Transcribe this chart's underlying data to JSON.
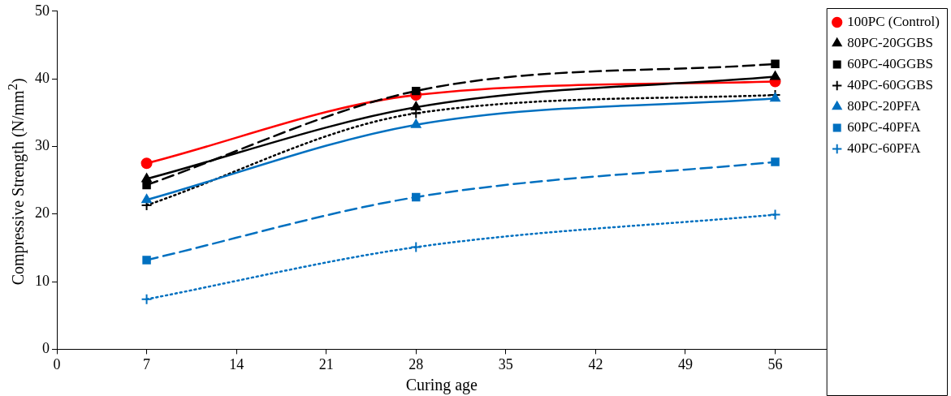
{
  "chart_data": {
    "type": "line",
    "xlabel": "Curing age",
    "ylabel": "Compressive Strength (N/mm$^{2}$)",
    "x": [
      7,
      28,
      56
    ],
    "xlim": [
      0,
      60
    ],
    "xticks": [
      0,
      7,
      14,
      21,
      28,
      35,
      42,
      49,
      56
    ],
    "ylim": [
      0,
      50
    ],
    "yticks": [
      0,
      10,
      20,
      30,
      40,
      50
    ],
    "grid": false,
    "legend": "right",
    "series": [
      {
        "name": "100PC (Control)",
        "color": "#ff0000",
        "values": [
          27.5,
          37.6,
          39.6
        ],
        "marker": "circle",
        "line_style": "solid"
      },
      {
        "name": "80PC-20GGBS",
        "color": "#000000",
        "values": [
          25.2,
          35.8,
          40.3
        ],
        "marker": "triangle",
        "line_style": "solid"
      },
      {
        "name": "60PC-40GGBS",
        "color": "#000000",
        "values": [
          24.3,
          38.2,
          42.2
        ],
        "marker": "square",
        "line_style": "dashed"
      },
      {
        "name": "40PC-60GGBS",
        "color": "#000000",
        "values": [
          21.3,
          34.9,
          37.6
        ],
        "marker": "cross",
        "line_style": "dotted"
      },
      {
        "name": "80PC-20PFA",
        "color": "#0070c0",
        "values": [
          22.1,
          33.2,
          37.1
        ],
        "marker": "triangle",
        "line_style": "solid"
      },
      {
        "name": "60PC-40PFA",
        "color": "#0070c0",
        "values": [
          13.2,
          22.5,
          27.7
        ],
        "marker": "square",
        "line_style": "dashed"
      },
      {
        "name": "40PC-60PFA",
        "color": "#0070c0",
        "values": [
          7.4,
          15.1,
          19.9
        ],
        "marker": "cross",
        "line_style": "dotted"
      }
    ]
  }
}
